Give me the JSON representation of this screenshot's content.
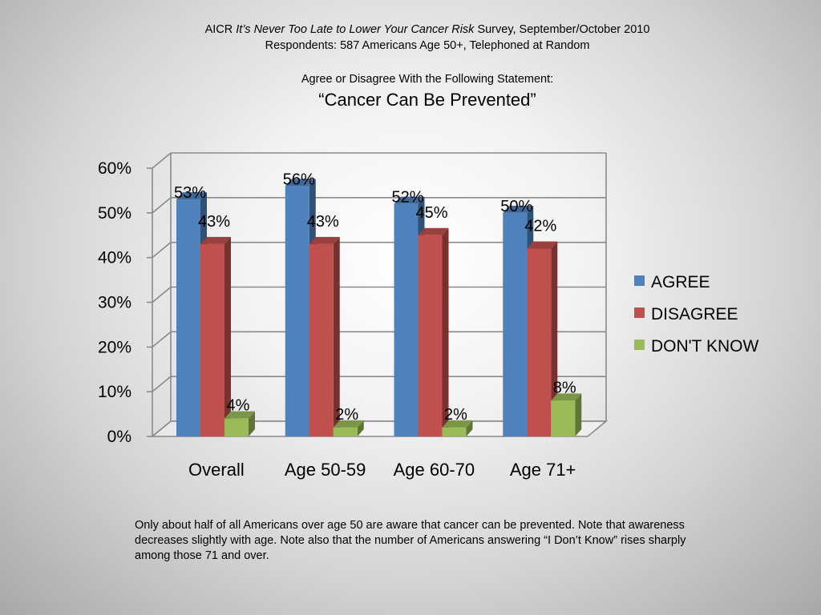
{
  "header": {
    "line1_prefix": "AICR ",
    "line1_italic": "It’s Never Too Late to Lower Your Cancer Risk",
    "line1_suffix": " Survey, September/October 2010",
    "line2": "Respondents: 587 Americans Age 50+, Telephoned at Random",
    "statement_intro": "Agree or Disagree With the Following Statement:",
    "statement": "“Cancer Can Be Prevented”"
  },
  "chart_data": {
    "type": "bar",
    "categories": [
      "Overall",
      "Age 50-59",
      "Age 60-70",
      "Age 71+"
    ],
    "series": [
      {
        "name": "AGREE",
        "color": "#4f81bd",
        "values": [
          53,
          56,
          52,
          50
        ]
      },
      {
        "name": "DISAGREE",
        "color": "#c0504d",
        "values": [
          43,
          43,
          45,
          42
        ]
      },
      {
        "name": "DON'T KNOW",
        "color": "#9bbb59",
        "values": [
          4,
          2,
          2,
          8
        ]
      }
    ],
    "y_ticks": [
      "0%",
      "10%",
      "20%",
      "30%",
      "40%",
      "50%",
      "60%"
    ],
    "ylim": [
      0,
      60
    ],
    "grid": true,
    "legend_position": "right",
    "data_label_suffix": "%"
  },
  "footnote": "Only about half of all Americans over age 50 are aware that cancer can be prevented.  Note that awareness decreases slightly with age.  Note also that the number of Americans answering “I Don’t Know” rises sharply among those 71 and over."
}
